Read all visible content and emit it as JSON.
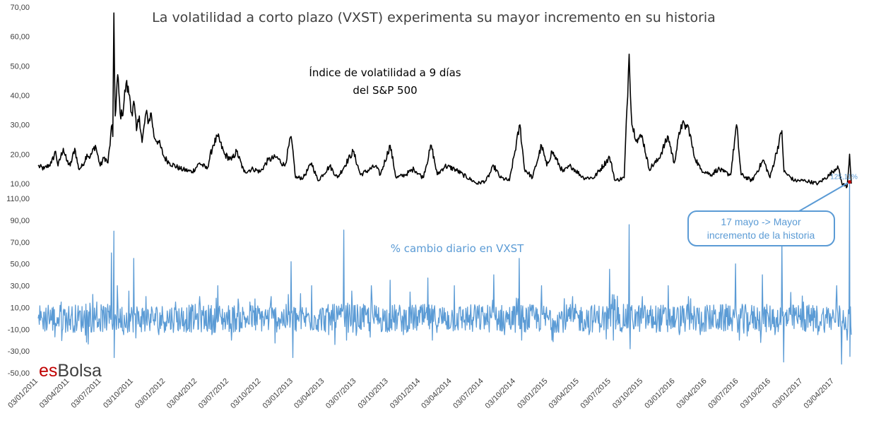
{
  "chart_data": [
    {
      "type": "line",
      "title": "La volatilidad a corto plazo (VXST) experimenta su mayor incremento en su historia",
      "series": [
        {
          "name": "Índice de volatilidad a 9 días del S&P 500",
          "points": [
            [
              "2011-01-03",
              16
            ],
            [
              "2011-01-20",
              15
            ],
            [
              "2011-02-10",
              17
            ],
            [
              "2011-02-22",
              21
            ],
            [
              "2011-03-01",
              16
            ],
            [
              "2011-03-16",
              22
            ],
            [
              "2011-03-25",
              18
            ],
            [
              "2011-04-05",
              16
            ],
            [
              "2011-04-18",
              22
            ],
            [
              "2011-04-29",
              15
            ],
            [
              "2011-05-10",
              16
            ],
            [
              "2011-05-23",
              20
            ],
            [
              "2011-06-01",
              19
            ],
            [
              "2011-06-16",
              23
            ],
            [
              "2011-06-30",
              16
            ],
            [
              "2011-07-12",
              19
            ],
            [
              "2011-07-22",
              17
            ],
            [
              "2011-08-03",
              30
            ],
            [
              "2011-08-05",
              26
            ],
            [
              "2011-08-08",
              68
            ],
            [
              "2011-08-10",
              48
            ],
            [
              "2011-08-12",
              33
            ],
            [
              "2011-08-19",
              47
            ],
            [
              "2011-08-26",
              34
            ],
            [
              "2011-09-01",
              33
            ],
            [
              "2011-09-12",
              44
            ],
            [
              "2011-09-22",
              40
            ],
            [
              "2011-09-30",
              33
            ],
            [
              "2011-10-04",
              38
            ],
            [
              "2011-10-12",
              28
            ],
            [
              "2011-10-20",
              33
            ],
            [
              "2011-10-28",
              24
            ],
            [
              "2011-11-08",
              34
            ],
            [
              "2011-11-16",
              31
            ],
            [
              "2011-11-23",
              34
            ],
            [
              "2011-12-01",
              26
            ],
            [
              "2011-12-15",
              24
            ],
            [
              "2011-12-30",
              19
            ],
            [
              "2012-01-15",
              17
            ],
            [
              "2012-02-15",
              15
            ],
            [
              "2012-03-20",
              14
            ],
            [
              "2012-04-10",
              17
            ],
            [
              "2012-05-01",
              15
            ],
            [
              "2012-05-18",
              23
            ],
            [
              "2012-06-01",
              26
            ],
            [
              "2012-06-20",
              20
            ],
            [
              "2012-07-10",
              18
            ],
            [
              "2012-07-25",
              21
            ],
            [
              "2012-08-15",
              14
            ],
            [
              "2012-09-10",
              15
            ],
            [
              "2012-10-01",
              14
            ],
            [
              "2012-10-23",
              18
            ],
            [
              "2012-11-16",
              19
            ],
            [
              "2012-12-10",
              16
            ],
            [
              "2012-12-28",
              26
            ],
            [
              "2013-01-10",
              12
            ],
            [
              "2013-02-01",
              12
            ],
            [
              "2013-02-25",
              17
            ],
            [
              "2013-03-15",
              11
            ],
            [
              "2013-04-18",
              16
            ],
            [
              "2013-05-10",
              12
            ],
            [
              "2013-06-24",
              21
            ],
            [
              "2013-07-15",
              13
            ],
            [
              "2013-08-27",
              16
            ],
            [
              "2013-09-10",
              13
            ],
            [
              "2013-10-08",
              23
            ],
            [
              "2013-10-25",
              12
            ],
            [
              "2013-11-20",
              13
            ],
            [
              "2013-12-15",
              15
            ],
            [
              "2014-01-10",
              12
            ],
            [
              "2014-02-03",
              23
            ],
            [
              "2014-02-20",
              13
            ],
            [
              "2014-03-14",
              16
            ],
            [
              "2014-04-10",
              15
            ],
            [
              "2014-05-05",
              13
            ],
            [
              "2014-06-15",
              10
            ],
            [
              "2014-07-10",
              11
            ],
            [
              "2014-08-01",
              16
            ],
            [
              "2014-08-20",
              12
            ],
            [
              "2014-09-15",
              11
            ],
            [
              "2014-10-15",
              30
            ],
            [
              "2014-10-28",
              15
            ],
            [
              "2014-11-20",
              12
            ],
            [
              "2014-12-16",
              23
            ],
            [
              "2014-12-31",
              16
            ],
            [
              "2015-01-15",
              21
            ],
            [
              "2015-02-15",
              14
            ],
            [
              "2015-03-10",
              16
            ],
            [
              "2015-04-15",
              12
            ],
            [
              "2015-05-15",
              12
            ],
            [
              "2015-06-29",
              19
            ],
            [
              "2015-07-15",
              11
            ],
            [
              "2015-08-10",
              12
            ],
            [
              "2015-08-24",
              54
            ],
            [
              "2015-09-01",
              30
            ],
            [
              "2015-09-15",
              25
            ],
            [
              "2015-10-01",
              26
            ],
            [
              "2015-10-20",
              15
            ],
            [
              "2015-11-15",
              18
            ],
            [
              "2015-12-14",
              26
            ],
            [
              "2015-12-31",
              17
            ],
            [
              "2016-01-20",
              30
            ],
            [
              "2016-02-11",
              29
            ],
            [
              "2016-02-25",
              20
            ],
            [
              "2016-03-15",
              15
            ],
            [
              "2016-04-15",
              13
            ],
            [
              "2016-05-05",
              15
            ],
            [
              "2016-05-20",
              14
            ],
            [
              "2016-06-10",
              13
            ],
            [
              "2016-06-27",
              30
            ],
            [
              "2016-07-10",
              13
            ],
            [
              "2016-08-10",
              11
            ],
            [
              "2016-09-12",
              18
            ],
            [
              "2016-10-01",
              12
            ],
            [
              "2016-11-04",
              28
            ],
            [
              "2016-11-10",
              14
            ],
            [
              "2016-12-10",
              11
            ],
            [
              "2017-01-10",
              11
            ],
            [
              "2017-02-15",
              10
            ],
            [
              "2017-03-21",
              13
            ],
            [
              "2017-04-13",
              16
            ],
            [
              "2017-04-25",
              10
            ],
            [
              "2017-05-10",
              9
            ],
            [
              "2017-05-17",
              20
            ],
            [
              "2017-05-22",
              10
            ]
          ]
        },
        {
          "name": "% cambio diario en VXST",
          "points": [
            [
              "2011-01-03",
              0
            ],
            [
              "2011-02-01",
              12
            ],
            [
              "2011-02-20",
              -17
            ],
            [
              "2011-03-10",
              15
            ],
            [
              "2011-04-15",
              -11
            ],
            [
              "2011-05-20",
              13
            ],
            [
              "2011-06-20",
              15
            ],
            [
              "2011-07-15",
              10
            ],
            [
              "2011-08-01",
              60
            ],
            [
              "2011-08-08",
              80
            ],
            [
              "2011-08-09",
              -36
            ],
            [
              "2011-08-18",
              30
            ],
            [
              "2011-09-05",
              -15
            ],
            [
              "2011-09-20",
              25
            ],
            [
              "2011-10-04",
              55
            ],
            [
              "2011-10-10",
              -18
            ],
            [
              "2011-11-08",
              20
            ],
            [
              "2011-12-15",
              -15
            ],
            [
              "2012-02-01",
              15
            ],
            [
              "2012-04-10",
              20
            ],
            [
              "2012-05-15",
              -15
            ],
            [
              "2012-06-01",
              30
            ],
            [
              "2012-07-10",
              -20
            ],
            [
              "2012-09-01",
              15
            ],
            [
              "2012-11-01",
              20
            ],
            [
              "2012-12-28",
              52
            ],
            [
              "2013-01-02",
              -36
            ],
            [
              "2013-02-25",
              30
            ],
            [
              "2013-04-15",
              -15
            ],
            [
              "2013-05-28",
              81
            ],
            [
              "2013-06-05",
              -20
            ],
            [
              "2013-06-20",
              25
            ],
            [
              "2013-08-15",
              30
            ],
            [
              "2013-10-08",
              35
            ],
            [
              "2013-11-15",
              -15
            ],
            [
              "2014-01-24",
              37
            ],
            [
              "2014-02-06",
              -20
            ],
            [
              "2014-04-10",
              30
            ],
            [
              "2014-06-01",
              -12
            ],
            [
              "2014-08-01",
              40
            ],
            [
              "2014-09-01",
              -15
            ],
            [
              "2014-10-13",
              55
            ],
            [
              "2014-10-20",
              -20
            ],
            [
              "2014-12-16",
              30
            ],
            [
              "2015-01-15",
              -20
            ],
            [
              "2015-03-15",
              20
            ],
            [
              "2015-05-01",
              -15
            ],
            [
              "2015-06-29",
              45
            ],
            [
              "2015-07-10",
              -20
            ],
            [
              "2015-08-24",
              86
            ],
            [
              "2015-08-27",
              -28
            ],
            [
              "2015-10-01",
              20
            ],
            [
              "2015-12-14",
              30
            ],
            [
              "2016-01-15",
              -15
            ],
            [
              "2016-02-10",
              20
            ],
            [
              "2016-03-15",
              -15
            ],
            [
              "2016-06-24",
              50
            ],
            [
              "2016-07-05",
              -20
            ],
            [
              "2016-09-09",
              40
            ],
            [
              "2016-10-15",
              -15
            ],
            [
              "2016-11-04",
              70
            ],
            [
              "2016-11-09",
              -40
            ],
            [
              "2016-12-15",
              10
            ],
            [
              "2017-02-15",
              -15
            ],
            [
              "2017-04-10",
              30
            ],
            [
              "2017-04-24",
              -42
            ],
            [
              "2017-05-10",
              -20
            ],
            [
              "2017-05-17",
              125.11
            ],
            [
              "2017-05-18",
              -35
            ],
            [
              "2017-05-22",
              -15
            ]
          ]
        }
      ],
      "annotations": {
        "series1_label": "Índice de volatilidad a 9 días del S&P 500",
        "series2_label": "% cambio diario en VXST",
        "callout": "17 mayo -> Mayor incremento de la historia",
        "callout_line1": "17 mayo -> Mayor",
        "callout_line2": "incremento de la historia",
        "peak_label": "125,11%",
        "peak_date": "2017-05-17",
        "peak_value": 125.11
      },
      "axes": {
        "upper_y_ticks": [
          "70,00",
          "60,00",
          "50,00",
          "40,00",
          "30,00",
          "20,00",
          "10,00"
        ],
        "lower_y_ticks": [
          "110,00",
          "90,00",
          "70,00",
          "50,00",
          "30,00",
          "10,00",
          "-10,00",
          "-30,00",
          "-50,00"
        ],
        "x_ticks": [
          "03/01/2011",
          "03/04/2011",
          "03/07/2011",
          "03/10/2011",
          "03/01/2012",
          "03/04/2012",
          "03/07/2012",
          "03/10/2012",
          "03/01/2013",
          "03/04/2013",
          "03/07/2013",
          "03/10/2013",
          "03/01/2014",
          "03/04/2014",
          "03/07/2014",
          "03/10/2014",
          "03/01/2015",
          "03/04/2015",
          "03/07/2015",
          "03/10/2015",
          "03/01/2016",
          "03/04/2016",
          "03/07/2016",
          "03/10/2016",
          "03/01/2017",
          "03/04/2017"
        ],
        "upper_ylim": [
          10,
          70
        ],
        "lower_ylim": [
          -50,
          110
        ],
        "xlim": [
          "2011-01-03",
          "2017-05-22"
        ],
        "grid": false
      },
      "colors": {
        "series1": "#000000",
        "series2": "#5b9bd5",
        "peak_marker": "#c00000",
        "text": "#404040"
      }
    }
  ],
  "logo": {
    "part1": "es",
    "part2": "Bolsa",
    "color1": "#c00000",
    "color2": "#404040"
  }
}
